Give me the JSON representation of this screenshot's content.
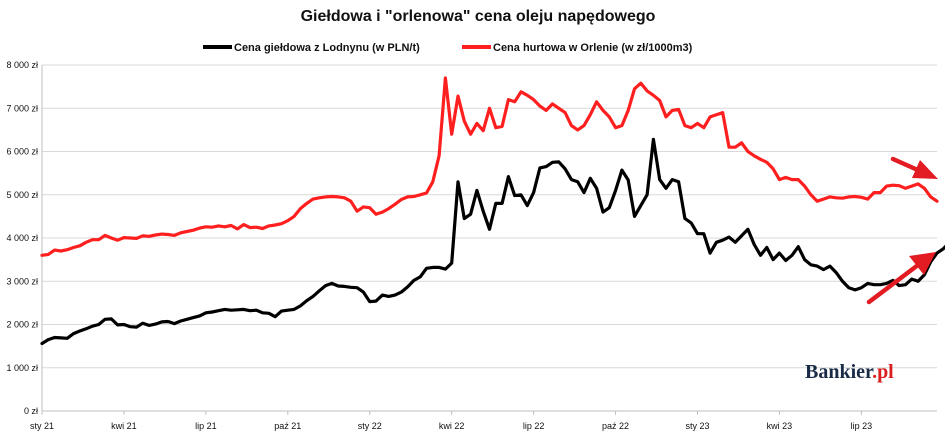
{
  "chart_data": {
    "type": "line",
    "title": "Giełdowa i \"orlenowa\" cena oleju napędowego",
    "ylim": [
      0,
      8000
    ],
    "y_ticks": [
      {
        "value": 0,
        "label": "0 zł"
      },
      {
        "value": 1000,
        "label": "1 000 zł"
      },
      {
        "value": 2000,
        "label": "2 000 zł"
      },
      {
        "value": 3000,
        "label": "3 000 zł"
      },
      {
        "value": 4000,
        "label": "4 000 zł"
      },
      {
        "value": 5000,
        "label": "5 000 zł"
      },
      {
        "value": 6000,
        "label": "6 000 zł"
      },
      {
        "value": 7000,
        "label": "7 000 zł"
      },
      {
        "value": 8000,
        "label": "8 000 zł"
      }
    ],
    "x_ticks": [
      "sty 21",
      "kwi 21",
      "lip 21",
      "paź 21",
      "sty 22",
      "kwi 22",
      "lip 22",
      "paź 22",
      "sty 23",
      "kwi 23",
      "lip 23"
    ],
    "x_tick_positions": [
      0,
      13,
      26,
      39,
      52,
      65,
      78,
      91,
      104,
      117,
      130
    ],
    "x_max": 142,
    "grid": "horizontal",
    "legend_position": "top",
    "series": [
      {
        "name": "Cena giełdowa z Lodnynu (w PLN/t)",
        "color": "#000000",
        "values": [
          1560,
          1650,
          1700,
          1690,
          1680,
          1790,
          1850,
          1900,
          1960,
          2000,
          2120,
          2130,
          1990,
          2000,
          1950,
          1940,
          2030,
          1980,
          2010,
          2060,
          2070,
          2020,
          2080,
          2120,
          2160,
          2200,
          2270,
          2290,
          2320,
          2350,
          2330,
          2340,
          2350,
          2320,
          2330,
          2270,
          2260,
          2180,
          2310,
          2330,
          2350,
          2430,
          2550,
          2650,
          2780,
          2900,
          2950,
          2890,
          2880,
          2860,
          2850,
          2750,
          2530,
          2540,
          2680,
          2650,
          2680,
          2750,
          2870,
          3020,
          3100,
          3300,
          3320,
          3320,
          3280,
          3420,
          5300,
          4450,
          4550,
          5100,
          4620,
          4200,
          4800,
          4800,
          5420,
          4980,
          5000,
          4750,
          5050,
          5620,
          5650,
          5750,
          5760,
          5600,
          5350,
          5300,
          5050,
          5380,
          5150,
          4600,
          4700,
          5100,
          5570,
          5340,
          4500,
          4750,
          5000,
          6280,
          5350,
          5150,
          5350,
          5300,
          4450,
          4350,
          4100,
          4100,
          3650,
          3900,
          3950,
          4020,
          3900,
          4050,
          4200,
          3850,
          3600,
          3780,
          3500,
          3650,
          3480,
          3600,
          3800,
          3500,
          3380,
          3350,
          3270,
          3350,
          3200,
          3000,
          2850,
          2800,
          2850,
          2950,
          2920,
          2920,
          2950,
          3020,
          2900,
          2920,
          3050,
          3000,
          3150,
          3450,
          3650,
          3750,
          3900,
          3850,
          4200,
          4280
        ]
      },
      {
        "name": "Cena hurtowa w Orlenie (w zł/1000m3)",
        "color": "#ff1f1f",
        "values": [
          3600,
          3620,
          3720,
          3700,
          3730,
          3780,
          3820,
          3900,
          3960,
          3960,
          4060,
          4000,
          3950,
          4010,
          4000,
          3990,
          4050,
          4040,
          4070,
          4090,
          4080,
          4060,
          4120,
          4150,
          4180,
          4230,
          4260,
          4250,
          4280,
          4260,
          4290,
          4210,
          4310,
          4240,
          4250,
          4220,
          4280,
          4300,
          4330,
          4400,
          4500,
          4680,
          4800,
          4900,
          4930,
          4950,
          4960,
          4950,
          4930,
          4850,
          4620,
          4720,
          4700,
          4550,
          4600,
          4680,
          4780,
          4890,
          4950,
          4960,
          5000,
          5040,
          5300,
          5900,
          7700,
          6400,
          7280,
          6700,
          6400,
          6650,
          6480,
          7000,
          6550,
          6580,
          7200,
          7150,
          7380,
          7300,
          7200,
          7050,
          6950,
          7100,
          7000,
          6900,
          6600,
          6500,
          6600,
          6850,
          7150,
          6950,
          6800,
          6550,
          6600,
          6950,
          7450,
          7580,
          7400,
          7300,
          7180,
          6800,
          6950,
          6970,
          6600,
          6550,
          6650,
          6550,
          6800,
          6850,
          6900,
          6100,
          6100,
          6200,
          6000,
          5900,
          5820,
          5750,
          5600,
          5350,
          5400,
          5350,
          5350,
          5200,
          5000,
          4850,
          4900,
          4950,
          4930,
          4920,
          4950,
          4960,
          4940,
          4900,
          5050,
          5050,
          5200,
          5220,
          5210,
          5150,
          5200,
          5250,
          5150,
          4950,
          4850
        ]
      }
    ]
  },
  "watermark": {
    "text_main": "Bankier",
    "text_suffix": ".pl"
  },
  "annotations": [
    {
      "type": "arrow",
      "color": "#e31b23",
      "direction": "down-right"
    },
    {
      "type": "arrow",
      "color": "#e31b23",
      "direction": "up-right"
    }
  ]
}
